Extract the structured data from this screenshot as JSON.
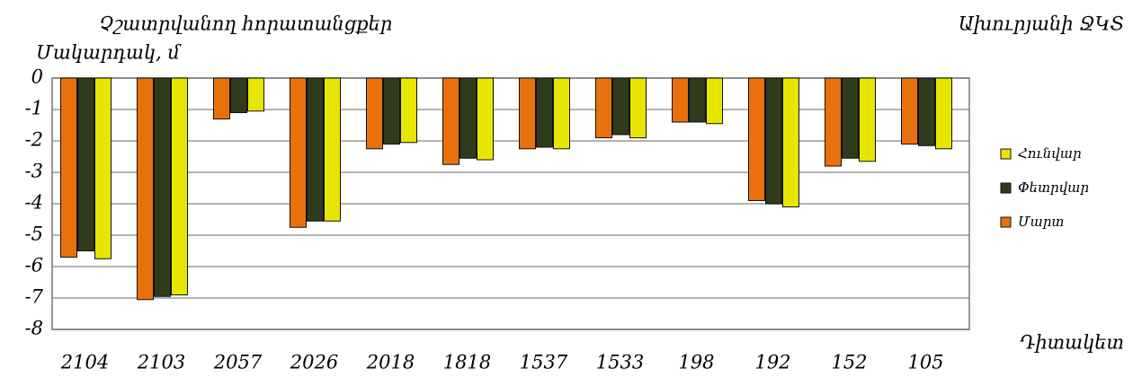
{
  "chart_data": {
    "type": "bar",
    "title": "Չշատրվանող հորատանցքեր",
    "subtitle": "Ախուրյանի ՋԿՏ",
    "y_label": "Մակարդակ, մ",
    "x_label": "Դիտակետ",
    "categories": [
      "2104",
      "2103",
      "2057",
      "2026",
      "2018",
      "1818",
      "1537",
      "1533",
      "198",
      "192",
      "152",
      "105"
    ],
    "series": [
      {
        "name": "Մարտ",
        "color": "#e8710e",
        "values": [
          -5.7,
          -7.05,
          -1.3,
          -4.75,
          -2.25,
          -2.75,
          -2.25,
          -1.9,
          -1.4,
          -3.9,
          -2.8,
          -2.1
        ]
      },
      {
        "name": "Փետրվար",
        "color": "#2f3b1b",
        "values": [
          -5.5,
          -6.95,
          -1.1,
          -4.55,
          -2.1,
          -2.55,
          -2.2,
          -1.8,
          -1.4,
          -4.0,
          -2.55,
          -2.15
        ]
      },
      {
        "name": "Հունվար",
        "color": "#e8e600",
        "values": [
          -5.75,
          -6.9,
          -1.05,
          -4.55,
          -2.05,
          -2.6,
          -2.25,
          -1.9,
          -1.45,
          -4.1,
          -2.65,
          -2.25
        ]
      }
    ],
    "ylim": [
      -8,
      0
    ],
    "yticks": [
      0,
      -1,
      -2,
      -3,
      -4,
      -5,
      -6,
      -7,
      -8
    ],
    "grid": true,
    "legend": "right"
  }
}
